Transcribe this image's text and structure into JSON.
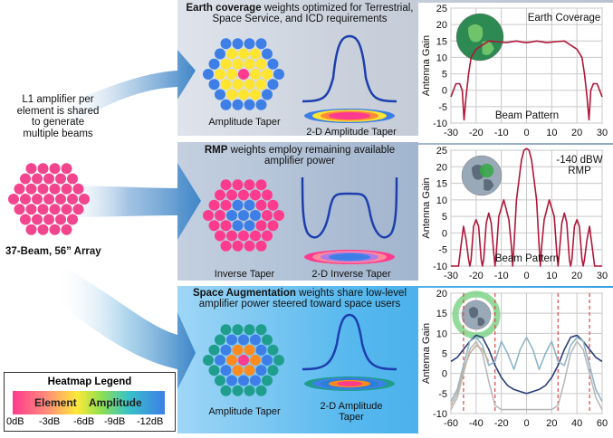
{
  "left": {
    "amplifier_text": [
      "L1 amplifier per",
      "element is shared",
      "to generate",
      "multiple beams"
    ],
    "array_label": "37-Beam, 56” Array"
  },
  "legend": {
    "title": "Heatmap Legend",
    "bar_text_1": "Element",
    "bar_text_2": "Amplitude",
    "ticks": [
      "0dB",
      "-3dB",
      "-6dB",
      "-9dB",
      "-12dB"
    ]
  },
  "rows": [
    {
      "header_bold": "Earth coverage",
      "header_rest_1": " weights optimized for Terrestrial,",
      "header_line_2": "Space Service, and ICD requirements",
      "array_label": "Amplitude Taper",
      "taper_label": "2-D Amplitude Taper",
      "chart_title": "Earth Coverage",
      "chart_bottom_label": "Beam Pattern",
      "ylabel": "Antenna Gain"
    },
    {
      "header_bold": "RMP",
      "header_rest_1": " weights employ remaining available",
      "header_line_2": "amplifier power",
      "array_label": "Inverse Taper",
      "taper_label": "2-D Inverse Taper",
      "chart_title_1": "-140 dBW",
      "chart_title_2": "RMP",
      "chart_bottom_label": "Beam Pattern",
      "ylabel": "Antenna Gain"
    },
    {
      "header_bold": "Space Augmentation",
      "header_rest_1": " weights share low-level",
      "header_line_2": "amplifier power steered toward space users",
      "array_label": "Amplitude Taper",
      "taper_label_1": "2-D Amplitude",
      "taper_label_2": "Taper",
      "ylabel": "Antenna Gain"
    }
  ],
  "chart_data": [
    {
      "type": "line",
      "title": "Earth Coverage",
      "ylabel": "Antenna Gain",
      "xlim": [
        -30,
        30
      ],
      "ylim": [
        -10,
        25
      ],
      "xticks": [
        -30,
        -20,
        -10,
        0,
        10,
        20,
        30
      ],
      "yticks": [
        -10,
        -5,
        0,
        5,
        10,
        15,
        20,
        25
      ],
      "grid": true,
      "series": [
        {
          "color": "#b0173a",
          "x": [
            -30,
            -28,
            -26.5,
            -25.5,
            -24.8,
            -24,
            -23,
            -22,
            -20,
            -17,
            -15,
            -12,
            -8,
            -4,
            -2,
            0,
            2,
            4,
            8,
            12,
            15,
            17,
            20,
            22,
            23,
            24,
            24.8,
            25.5,
            26.5,
            28,
            30
          ],
          "y": [
            -2,
            2,
            2,
            0,
            -9,
            -2,
            5,
            10,
            12.5,
            14,
            15,
            14.8,
            14.5,
            15,
            14.7,
            14.5,
            14.7,
            15,
            14.5,
            14.8,
            15,
            14,
            12.5,
            10,
            5,
            -2,
            -9,
            0,
            2,
            2,
            -2
          ]
        }
      ]
    },
    {
      "type": "line",
      "title": "-140 dBW RMP",
      "ylabel": "Antenna Gain",
      "xlim": [
        -30,
        30
      ],
      "ylim": [
        -10,
        25
      ],
      "xticks": [
        -30,
        -20,
        -10,
        0,
        10,
        20,
        30
      ],
      "yticks": [
        -10,
        -5,
        0,
        5,
        10,
        15,
        20,
        25
      ],
      "grid": true,
      "series": [
        {
          "color": "#b0173a",
          "x": [
            -30,
            -27,
            -26,
            -25,
            -24,
            -23,
            -22.5,
            -22,
            -21,
            -20,
            -19,
            -18,
            -17.5,
            -17,
            -16,
            -15,
            -14,
            -13,
            -12.5,
            -12,
            -11,
            -9,
            -7,
            -6,
            -5.5,
            -5,
            -4,
            -2,
            -1,
            0,
            1,
            2,
            4,
            5,
            5.5,
            6,
            7,
            9,
            11,
            12,
            12.5,
            13,
            14,
            15,
            16,
            17,
            17.5,
            18,
            19,
            20,
            21,
            22,
            22.5,
            23,
            24,
            25,
            26,
            27,
            30
          ],
          "y": [
            -10,
            -10,
            -4,
            2,
            -2,
            -8,
            -10,
            -8,
            2,
            4,
            2,
            -8,
            -10,
            -8,
            3,
            6,
            3,
            -6,
            -10,
            -6,
            5,
            10,
            4,
            -4,
            -10,
            -4,
            10,
            22,
            25,
            25.5,
            25,
            22,
            10,
            -4,
            -10,
            -4,
            4,
            10,
            5,
            -6,
            -10,
            -6,
            3,
            6,
            3,
            -8,
            -10,
            -8,
            2,
            4,
            2,
            -8,
            -10,
            -8,
            -2,
            2,
            -4,
            -10,
            -10
          ]
        }
      ]
    },
    {
      "type": "line",
      "ylabel": "Antenna Gain",
      "xlim": [
        -60,
        60
      ],
      "ylim": [
        -10,
        20
      ],
      "xticks": [
        -60,
        -40,
        -20,
        0,
        20,
        40,
        60
      ],
      "yticks": [
        -10,
        -5,
        0,
        5,
        10,
        15,
        20
      ],
      "grid": true,
      "markers_x": [
        -50,
        -25,
        25,
        50
      ],
      "series": [
        {
          "color": "#2a3f7a",
          "x": [
            -60,
            -55,
            -50,
            -45,
            -40,
            -35,
            -30,
            -25,
            -20,
            -15,
            -10,
            -5,
            0,
            5,
            10,
            15,
            20,
            25,
            30,
            35,
            40,
            45,
            50,
            55,
            60
          ],
          "y": [
            3,
            4,
            6,
            8,
            9.5,
            9,
            6,
            2,
            -1,
            -3,
            -4,
            -4.5,
            -5,
            -4.5,
            -4,
            -3,
            -1,
            2,
            6,
            9,
            9.5,
            8,
            6,
            4,
            3
          ]
        },
        {
          "color": "#8fb6c9",
          "x": [
            -60,
            -55,
            -50,
            -45,
            -40,
            -35,
            -30,
            -25,
            -20,
            -15,
            -10,
            -5,
            0,
            5,
            10,
            15,
            20,
            25,
            30,
            35,
            40,
            45,
            50,
            55,
            60
          ],
          "y": [
            -7,
            -4,
            2,
            8,
            9,
            7,
            2,
            3,
            8,
            5,
            1,
            6,
            9,
            6,
            1,
            5,
            8,
            3,
            2,
            7,
            9,
            8,
            2,
            -4,
            -7
          ]
        },
        {
          "color": "#b9b9b9",
          "x": [
            -60,
            -55,
            -50,
            -45,
            -40,
            -35,
            -30,
            -25,
            -20,
            -15,
            -10,
            -5,
            0,
            5,
            10,
            15,
            20,
            25,
            30,
            35,
            40,
            45,
            50,
            55,
            60
          ],
          "y": [
            -9,
            -6,
            0,
            6,
            8,
            5,
            -2,
            -8,
            -9,
            -9,
            -9,
            -9,
            -9,
            -9,
            -9,
            -9,
            -9,
            -8,
            -2,
            5,
            8,
            6,
            0,
            -6,
            -9
          ]
        },
        {
          "color": "#c7b29a",
          "x": [
            -60,
            -55,
            -50,
            -45,
            -40,
            -35,
            -30
          ],
          "y": [
            -8,
            -5,
            1,
            5,
            7,
            6,
            3
          ]
        }
      ]
    }
  ],
  "colors": {
    "row1_band": "#c3cbd7",
    "row2_band": "#aebed3",
    "row3_band": "#55b8ef",
    "arrow": "#4b91d0",
    "curve": "#1d3fae",
    "plot_line": "#b0173a",
    "array_pink": "#f2458e",
    "marker_dash": "#e04444"
  },
  "icons": [
    "earth-globe-icon",
    "earth-globe-icon",
    "earth-globe-with-ring-icon"
  ]
}
